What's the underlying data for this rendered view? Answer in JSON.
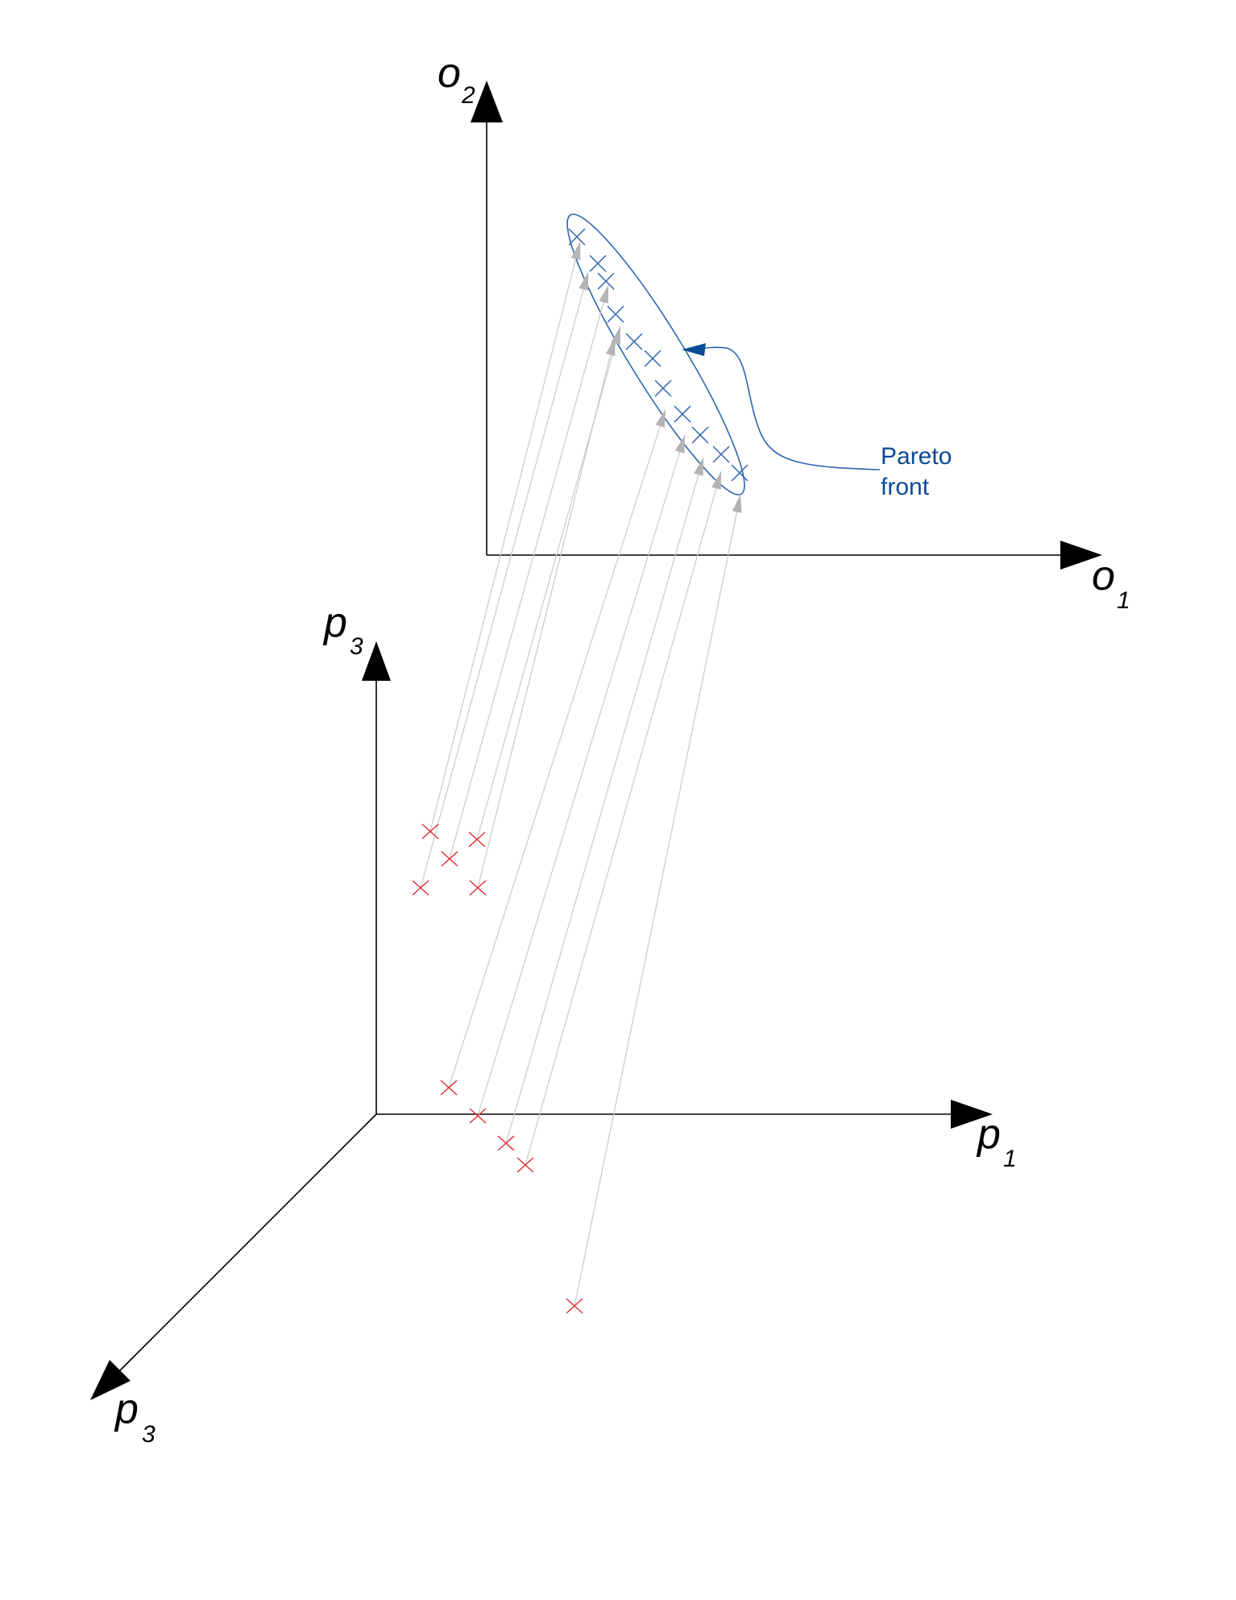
{
  "axes": {
    "objective_vertical": {
      "letter": "o",
      "sub": "2"
    },
    "objective_horizontal": {
      "letter": "o",
      "sub": "1"
    },
    "param_vertical": {
      "letter": "p",
      "sub": "3"
    },
    "param_horizontal": {
      "letter": "p",
      "sub": "1"
    },
    "param_depth": {
      "letter": "p",
      "sub": "3"
    }
  },
  "annotation": {
    "line1": "Pareto",
    "line2": "front"
  },
  "colors": {
    "axis": "#000000",
    "front": "#2d66b0",
    "annotation": "#0b4a94",
    "mapping_line": "#c8c8c8",
    "mapping_arrow": "#b4b4b4",
    "solution_marker": "#e0303a"
  }
}
